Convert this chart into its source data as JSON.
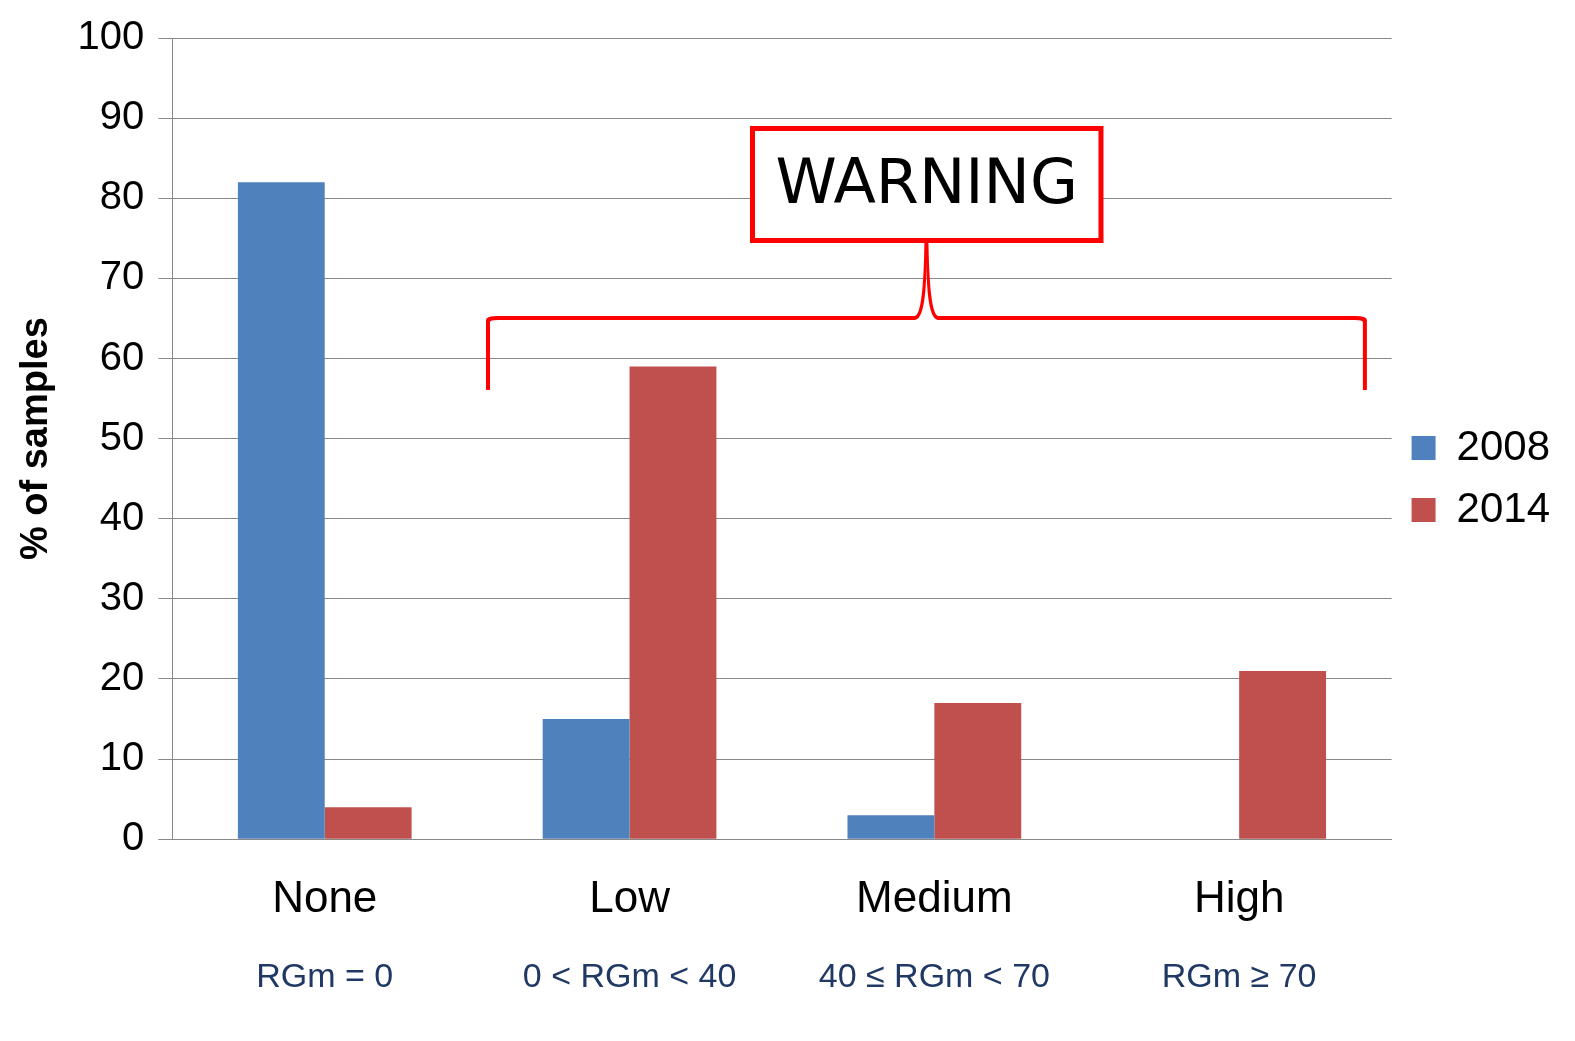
{
  "chart_data": {
    "type": "bar",
    "ylabel": "% of samples",
    "categories": [
      "None",
      "Low",
      "Medium",
      "High"
    ],
    "series": [
      {
        "name": "2008",
        "color": "#4f81bd",
        "values": [
          82,
          15,
          3,
          0
        ]
      },
      {
        "name": "2014",
        "color": "#c0504d",
        "values": [
          4,
          59,
          17,
          21
        ]
      }
    ],
    "ylim": [
      0,
      100
    ],
    "yticks": [
      0,
      10,
      20,
      30,
      40,
      50,
      60,
      70,
      80,
      90,
      100
    ],
    "grid": "y",
    "legend": "right",
    "annotations": [
      {
        "text": "RGm = 0"
      },
      {
        "text": "0 < RGm < 40"
      },
      {
        "text": "40 ≤ RGm < 70"
      },
      {
        "text": "RGm ≥ 70"
      },
      "WARNING"
    ]
  }
}
